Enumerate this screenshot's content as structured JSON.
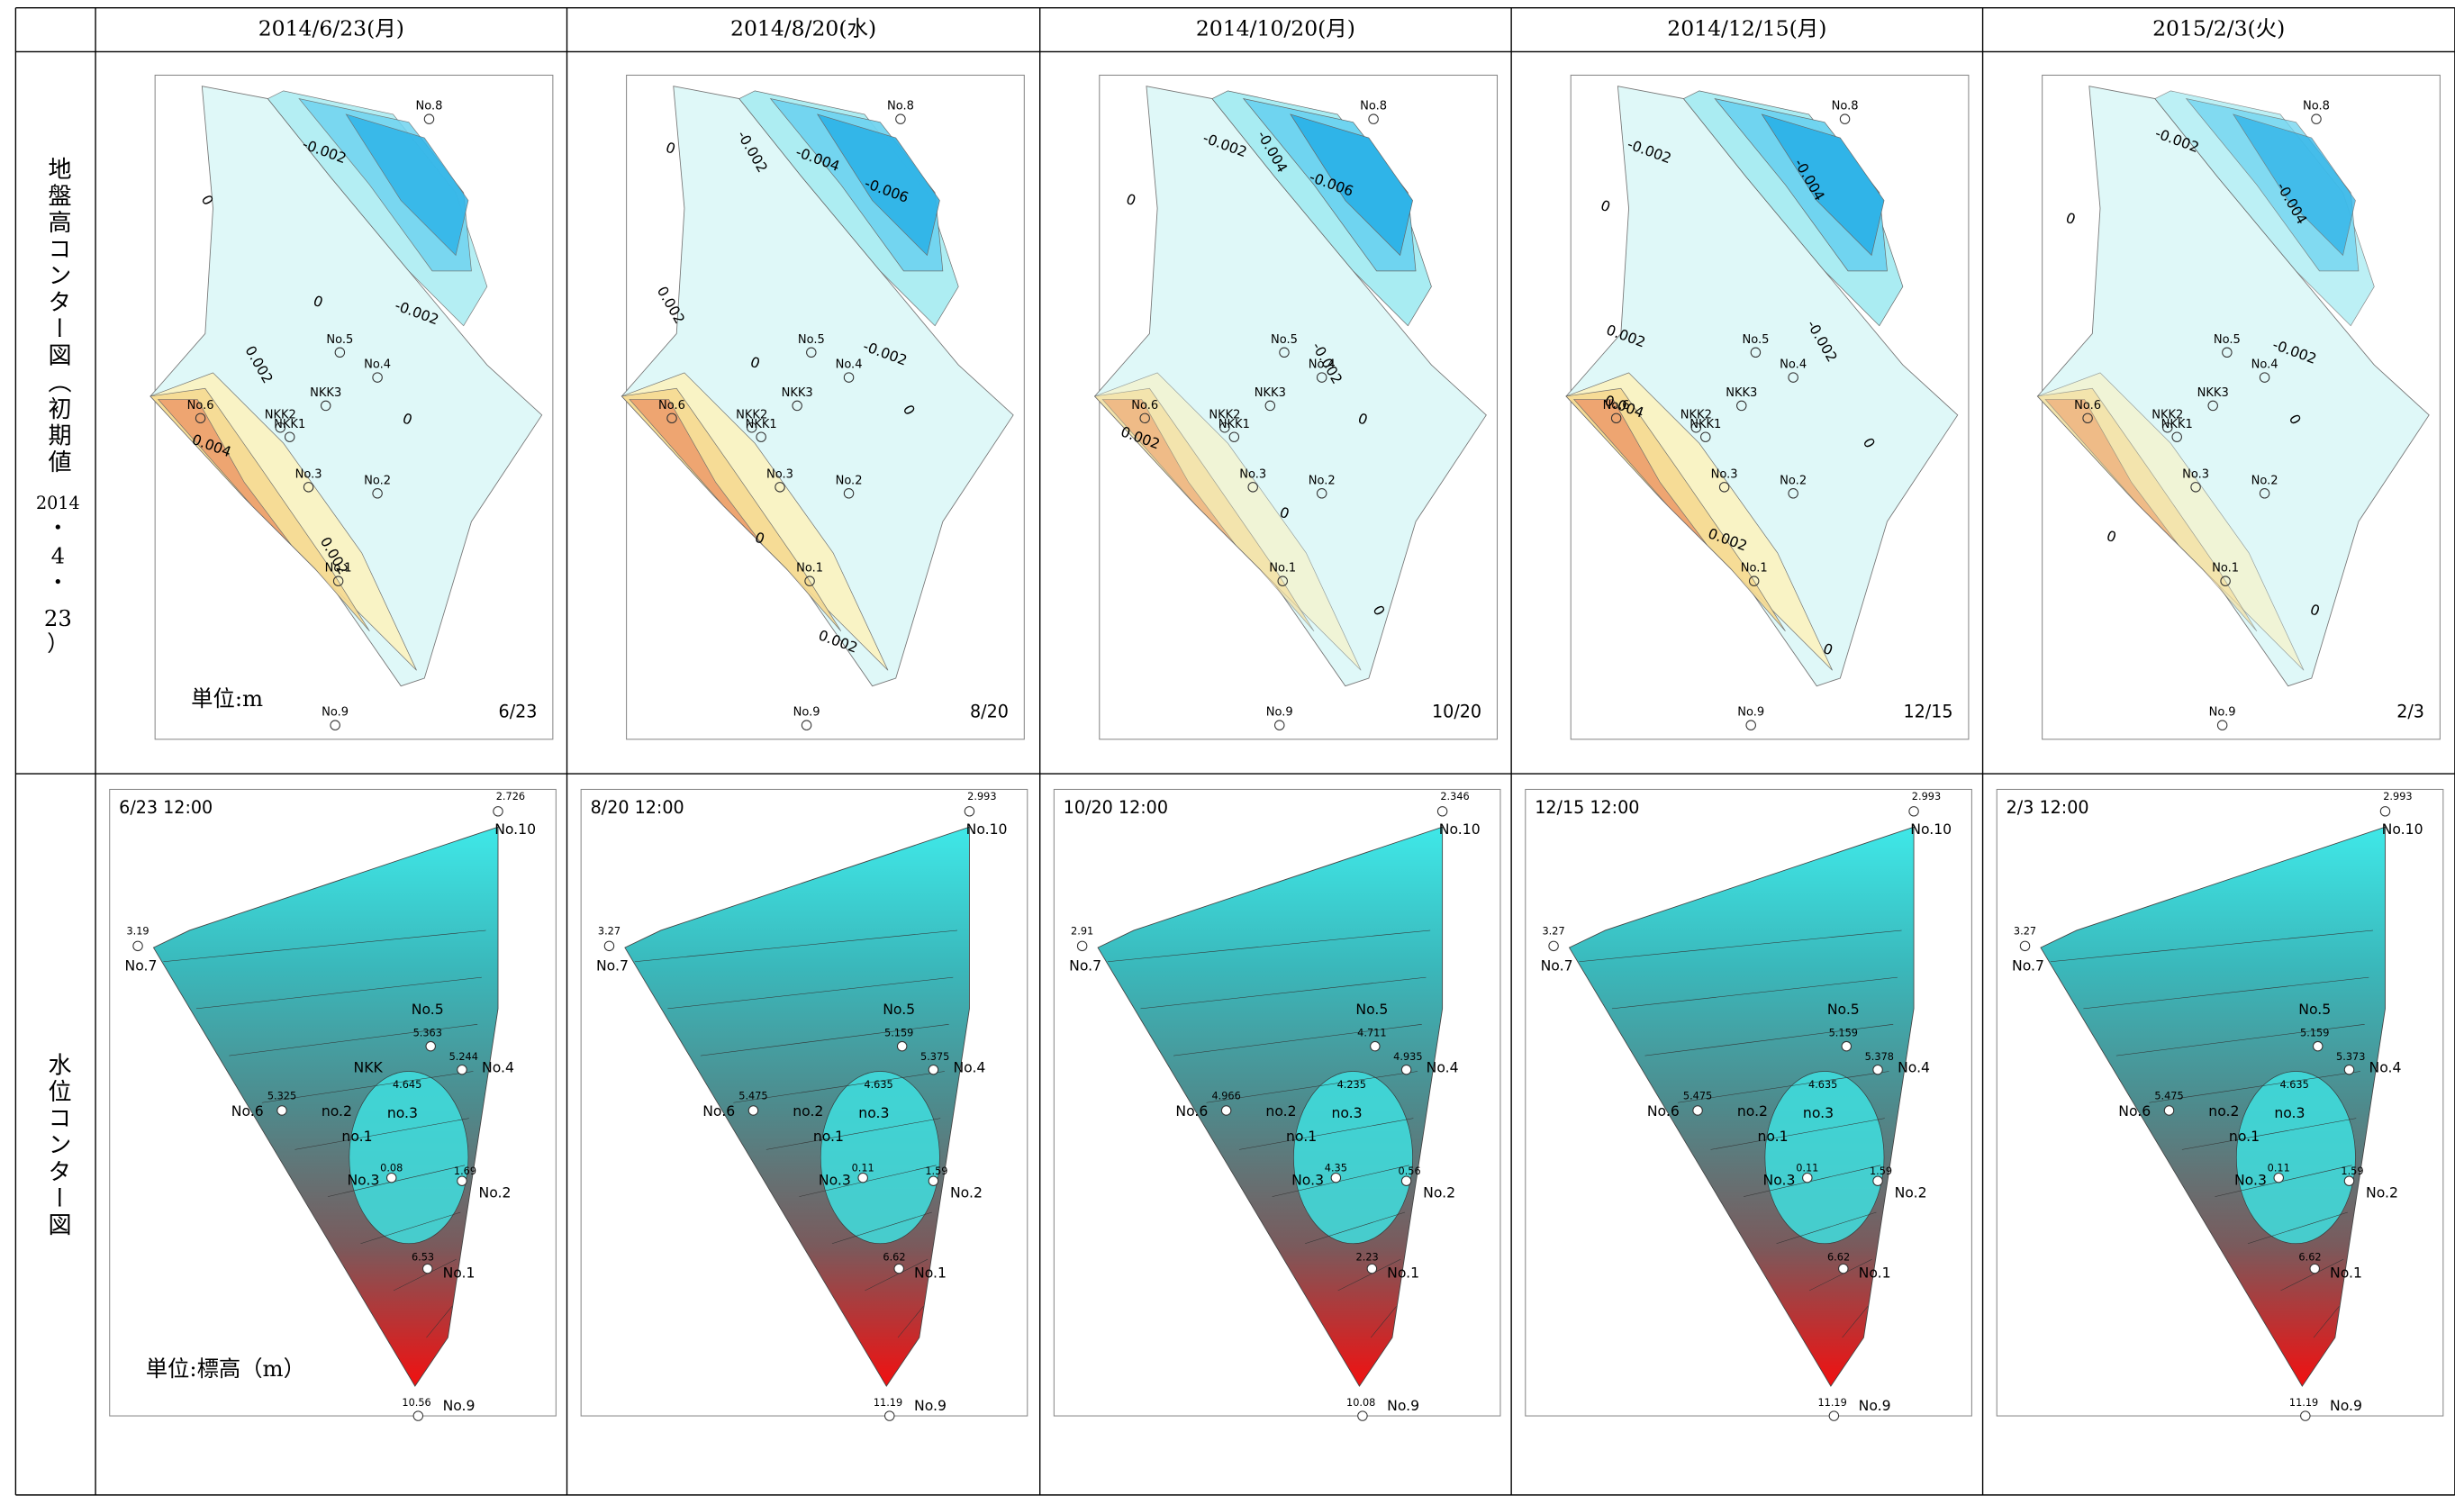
{
  "header": {
    "dates": [
      "2014/6/23(月)",
      "2014/8/20(水)",
      "2014/10/20(月)",
      "2014/12/15(月)",
      "2015/2/3(火)"
    ]
  },
  "rows": [
    {
      "label": "地盤高コンター図（初期値",
      "sublabel": [
        "2014",
        "・",
        "4",
        "・",
        "23",
        "）"
      ]
    },
    {
      "label": "水位コンター図"
    }
  ],
  "ground_maps": {
    "stations": [
      "No.8",
      "No.5",
      "No.4",
      "NKK3",
      "NKK2",
      "NKK1",
      "No.6",
      "No.3",
      "No.2",
      "No.1",
      "No.9"
    ],
    "unit": "単位:m",
    "panels": [
      {
        "stamp": "6/23",
        "contours": [
          "-0.002",
          "0",
          "0",
          "-0.002",
          "0.002",
          "0",
          "0.004",
          "0.002"
        ]
      },
      {
        "stamp": "8/20",
        "contours": [
          "0",
          "-0.002",
          "-0.004",
          "-0.006",
          "0.002",
          "0",
          "-0.002",
          "0",
          "0",
          "0.002"
        ]
      },
      {
        "stamp": "10/20",
        "contours": [
          "-0.002",
          "-0.004",
          "-0.006",
          "0",
          "-0.002",
          "0.002",
          "0",
          "0",
          "0"
        ]
      },
      {
        "stamp": "12/15",
        "contours": [
          "-0.002",
          "-0.004",
          "0",
          "0.002",
          "-0.002",
          "0.004",
          "0.002",
          "0",
          "0"
        ]
      },
      {
        "stamp": "2/3",
        "contours": [
          "-0.002",
          "-0.004",
          "0",
          "-0.002",
          "0",
          "0",
          "0"
        ]
      }
    ]
  },
  "water_maps": {
    "stations": [
      "No.10",
      "No.7",
      "No.5",
      "No.4",
      "No.6",
      "No.3",
      "No.2",
      "No.1",
      "No.9",
      "no.2",
      "no.3",
      "no.1"
    ],
    "unit": "単位:標高（m）",
    "panels": [
      {
        "time": "6/23 12:00",
        "extra_label": "NKK",
        "readings": [
          "2.726",
          "3.19",
          "5.363",
          "5.244",
          "5.325",
          "4.645",
          "0.08",
          "1.69",
          "6.53",
          "10.56"
        ]
      },
      {
        "time": "8/20 12:00",
        "readings": [
          "2.993",
          "3.27",
          "5.159",
          "5.375",
          "5.475",
          "4.635",
          "0.11",
          "1.59",
          "6.62",
          "11.19"
        ]
      },
      {
        "time": "10/20 12:00",
        "readings": [
          "2.346",
          "2.91",
          "4.711",
          "4.935",
          "4.966",
          "4.235",
          "4.35",
          "0.56",
          "2.23",
          "10.08"
        ]
      },
      {
        "time": "12/15 12:00",
        "readings": [
          "2.993",
          "3.27",
          "5.159",
          "5.378",
          "5.475",
          "4.635",
          "0.11",
          "1.59",
          "6.62",
          "11.19"
        ]
      },
      {
        "time": "2/3 12:00",
        "readings": [
          "2.993",
          "3.27",
          "5.159",
          "5.373",
          "5.475",
          "4.635",
          "0.11",
          "1.59",
          "6.62",
          "11.19"
        ]
      }
    ]
  }
}
